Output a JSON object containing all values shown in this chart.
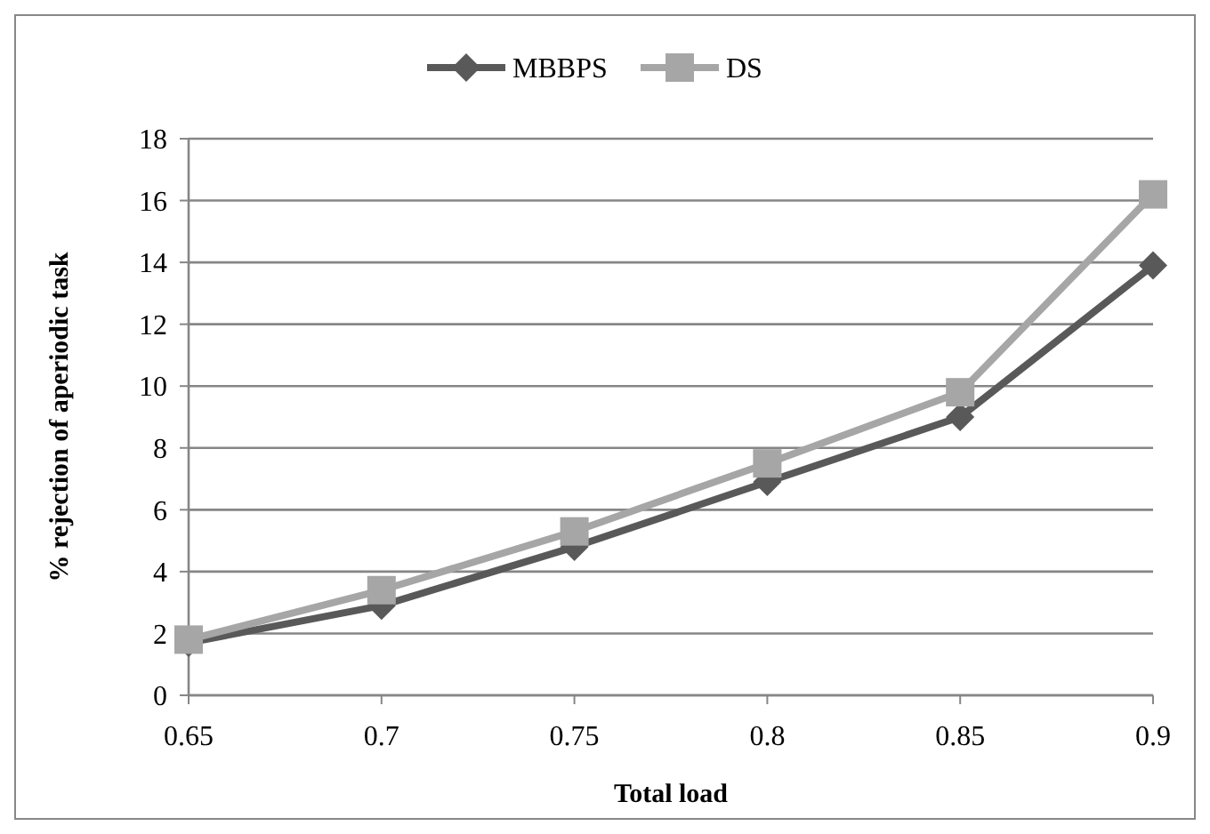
{
  "chart_data": {
    "type": "line",
    "xlabel": "Total load",
    "ylabel": "% rejection of aperiodic task",
    "categories": [
      "0.65",
      "0.7",
      "0.75",
      "0.8",
      "0.85",
      "0.9"
    ],
    "series": [
      {
        "name": "MBBPS",
        "color": "#595959",
        "marker": "diamond",
        "values": [
          1.7,
          2.9,
          4.8,
          6.9,
          9.0,
          13.9
        ]
      },
      {
        "name": "DS",
        "color": "#a6a6a6",
        "marker": "square",
        "values": [
          1.8,
          3.4,
          5.3,
          7.5,
          9.8,
          16.2
        ]
      }
    ],
    "ylim": [
      0,
      18
    ],
    "yticks": [
      0,
      2,
      4,
      6,
      8,
      10,
      12,
      14,
      16,
      18
    ],
    "grid": "y",
    "legend": "top"
  }
}
